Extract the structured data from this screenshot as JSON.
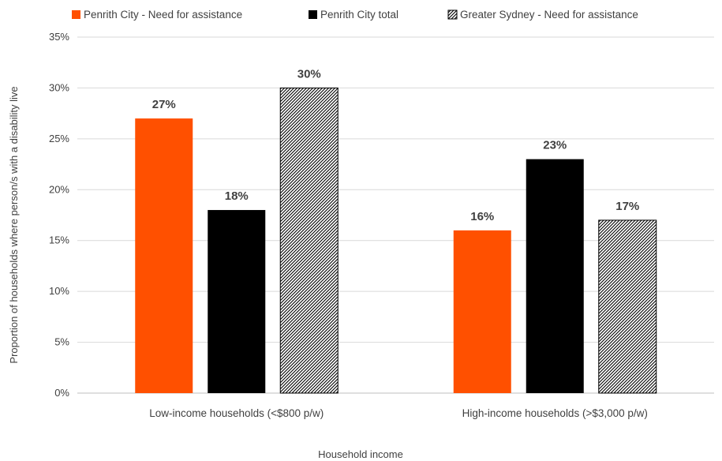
{
  "chart_data": {
    "type": "bar",
    "categories": [
      "Low-income households (<$800 p/w)",
      "High-income households (>$3,000 p/w)"
    ],
    "series": [
      {
        "name": "Penrith City - Need for assistance",
        "values": [
          27,
          16
        ],
        "labels": [
          "27%",
          "16%"
        ],
        "color": "#ff5000",
        "pattern": "solid"
      },
      {
        "name": "Penrith City total",
        "values": [
          18,
          23
        ],
        "labels": [
          "18%",
          "23%"
        ],
        "color": "#000000",
        "pattern": "solid"
      },
      {
        "name": "Greater Sydney - Need for assistance",
        "values": [
          30,
          17
        ],
        "labels": [
          "30%",
          "17%"
        ],
        "color": "#000000",
        "pattern": "hatched"
      }
    ],
    "title": "",
    "xlabel": "Household income",
    "ylabel": "Proportion of households where person/s with a disability live",
    "ylim": [
      0,
      35
    ],
    "yticks": [
      0,
      5,
      10,
      15,
      20,
      25,
      30,
      35
    ],
    "ytick_labels": [
      "0%",
      "5%",
      "10%",
      "15%",
      "20%",
      "25%",
      "30%",
      "35%"
    ],
    "grid": true,
    "legend_position": "top"
  }
}
